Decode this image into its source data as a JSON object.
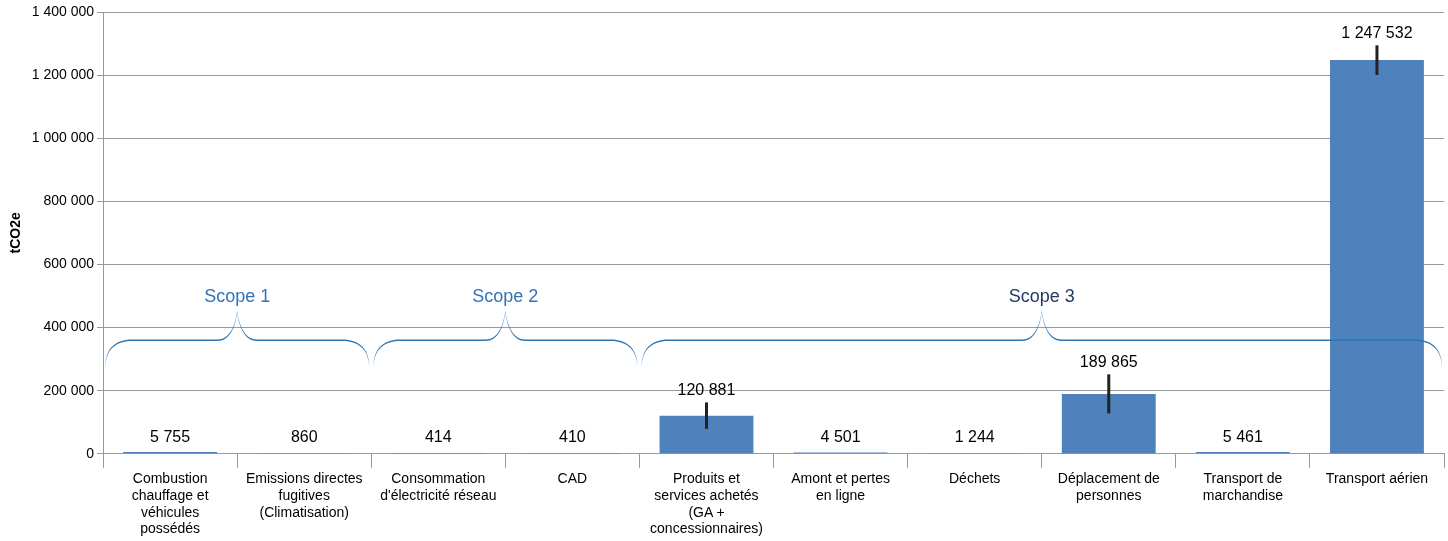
{
  "chart_data": {
    "type": "bar",
    "ylabel": "tCO2e",
    "categories": [
      "Combustion chauffage et véhicules possédés",
      "Emissions directes fugitives (Climatisation)",
      "Consommation d'électricité réseau",
      "CAD",
      "Produits et services achetés (GA + concessionnaires)",
      "Amont et pertes en ligne",
      "Déchets",
      "Déplacement de personnes",
      "Transport de marchandise",
      "Transport aérien"
    ],
    "values": [
      5755,
      860,
      414,
      410,
      120881,
      4501,
      1244,
      189865,
      5461,
      1247532
    ],
    "errors": [
      null,
      null,
      null,
      null,
      42000,
      null,
      null,
      62000,
      null,
      47000
    ],
    "value_labels": [
      "5 755",
      "860",
      "414",
      "410",
      "120 881",
      "4 501",
      "1 244",
      "189 865",
      "5 461",
      "1 247 532"
    ],
    "color": "#4f81bd",
    "ylim": [
      0,
      1400000
    ],
    "yticks": [
      0,
      {
        "value": 200000,
        "label": "200 000"
      },
      {
        "value": 400000,
        "label": "400 000"
      },
      {
        "value": 600000,
        "label": "600 000"
      },
      {
        "value": 800000,
        "label": "800 000"
      },
      {
        "value": 1000000,
        "label": "1 000 000"
      },
      {
        "value": 1200000,
        "label": "1 200 000"
      },
      {
        "value": 1400000,
        "label": "1 400 000"
      }
    ],
    "grid": "y",
    "annotations": [
      "Scope 1",
      "Scope 2",
      "Scope 3"
    ]
  }
}
